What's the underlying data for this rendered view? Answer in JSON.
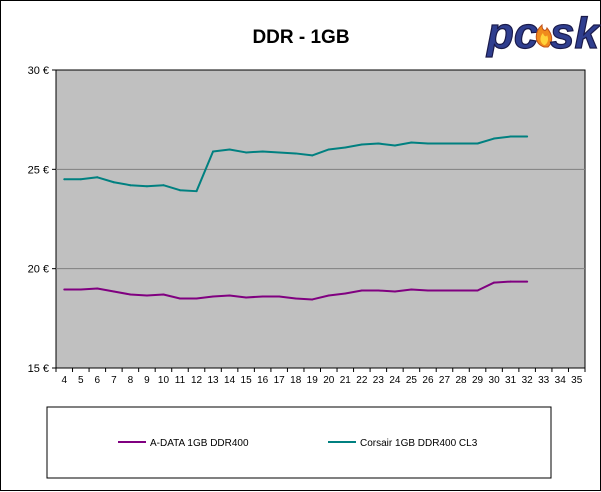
{
  "chart_data": {
    "type": "line",
    "title": "DDR - 1GB",
    "xlabel": "",
    "ylabel": "",
    "x": [
      4,
      5,
      6,
      7,
      8,
      9,
      10,
      11,
      12,
      13,
      14,
      15,
      16,
      17,
      18,
      19,
      20,
      21,
      22,
      23,
      24,
      25,
      26,
      27,
      28,
      29,
      30,
      31,
      32,
      33,
      34,
      35
    ],
    "ylim": [
      15,
      30
    ],
    "xlim": [
      3.5,
      35.5
    ],
    "y_ticks": [
      15,
      20,
      25,
      30
    ],
    "y_tick_labels": [
      "15 €",
      "20 €",
      "25 €",
      "30 €"
    ],
    "grid": "horizontal",
    "legend_position": "bottom",
    "series": [
      {
        "name": "A-DATA 1GB DDR400",
        "color": "#800080",
        "x": [
          4,
          5,
          6,
          7,
          8,
          9,
          10,
          11,
          12,
          13,
          14,
          15,
          16,
          17,
          18,
          19,
          20,
          21,
          22,
          23,
          24,
          25,
          26,
          27,
          28,
          29,
          30,
          31,
          32
        ],
        "values": [
          18.95,
          18.95,
          19.0,
          18.85,
          18.7,
          18.65,
          18.7,
          18.5,
          18.5,
          18.6,
          18.65,
          18.55,
          18.6,
          18.6,
          18.5,
          18.45,
          18.65,
          18.75,
          18.9,
          18.9,
          18.85,
          18.95,
          18.9,
          18.9,
          18.9,
          18.9,
          19.3,
          19.35,
          19.35
        ]
      },
      {
        "name": "Corsair 1GB DDR400 CL3",
        "color": "#008080",
        "x": [
          4,
          5,
          6,
          7,
          8,
          9,
          10,
          11,
          12,
          13,
          14,
          15,
          16,
          17,
          18,
          19,
          20,
          21,
          22,
          23,
          24,
          25,
          26,
          27,
          28,
          29,
          30,
          31,
          32
        ],
        "values": [
          24.5,
          24.5,
          24.6,
          24.35,
          24.2,
          24.15,
          24.2,
          23.95,
          23.9,
          25.9,
          26.0,
          25.85,
          25.9,
          25.85,
          25.8,
          25.7,
          26.0,
          26.1,
          26.25,
          26.3,
          26.2,
          26.35,
          26.3,
          26.3,
          26.3,
          26.3,
          26.55,
          26.65,
          26.65
        ]
      }
    ]
  },
  "logo": {
    "text": "pcesk",
    "main_color": "#2f3e8f",
    "flame_color": "#f08a1c"
  },
  "colors": {
    "plot_background": "#c0c0c0",
    "grid": "#808080"
  }
}
